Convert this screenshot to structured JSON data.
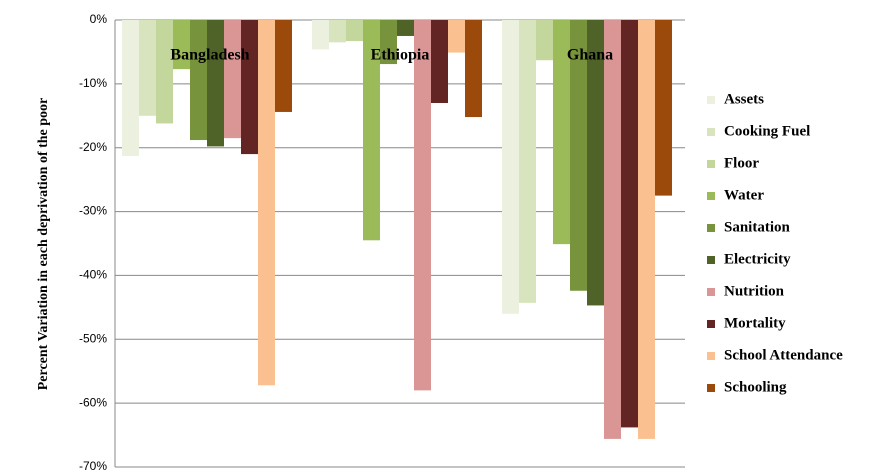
{
  "chart_data": {
    "type": "bar",
    "y_label": "Percent Variation in each deprivation of the poor",
    "categories": [
      "Bangladesh",
      "Ethiopia",
      "Ghana"
    ],
    "series": [
      {
        "name": "Assets",
        "color": "#ebf1de",
        "values": [
          -21.3,
          -4.6,
          -46
        ]
      },
      {
        "name": "Cooking Fuel",
        "color": "#d7e4bd",
        "values": [
          -15,
          -3.5,
          -44.3
        ]
      },
      {
        "name": "Floor",
        "color": "#c3d69b",
        "values": [
          -16.2,
          -3.3,
          -6.3
        ]
      },
      {
        "name": "Water",
        "color": "#9bbb59",
        "values": [
          -7.7,
          -34.5,
          -35.1
        ]
      },
      {
        "name": "Sanitation",
        "color": "#77933c",
        "values": [
          -18.8,
          -6.9,
          -42.4
        ]
      },
      {
        "name": "Electricity",
        "color": "#4f6228",
        "values": [
          -19.8,
          -2.5,
          -44.7
        ]
      },
      {
        "name": "Nutrition",
        "color": "#d99694",
        "values": [
          -18.5,
          -58,
          -65.6
        ]
      },
      {
        "name": "Mortality",
        "color": "#632523",
        "values": [
          -21,
          -13,
          -63.8
        ]
      },
      {
        "name": "School Attendance",
        "color": "#fac090",
        "values": [
          -57.2,
          -5.1,
          -65.6
        ]
      },
      {
        "name": "Schooling",
        "color": "#9c4a0c",
        "values": [
          -14.4,
          -15.2,
          -27.5
        ]
      }
    ],
    "ylim": [
      -70,
      0
    ],
    "yticks": [
      {
        "value": 0,
        "label": "0%"
      },
      {
        "value": -10,
        "label": "-10%"
      },
      {
        "value": -20,
        "label": "-20%"
      },
      {
        "value": -30,
        "label": "-30%"
      },
      {
        "value": -40,
        "label": "-40%"
      },
      {
        "value": -50,
        "label": "-50%"
      },
      {
        "value": -60,
        "label": "-60%"
      },
      {
        "value": -70,
        "label": "-70%"
      }
    ],
    "grid": true
  }
}
